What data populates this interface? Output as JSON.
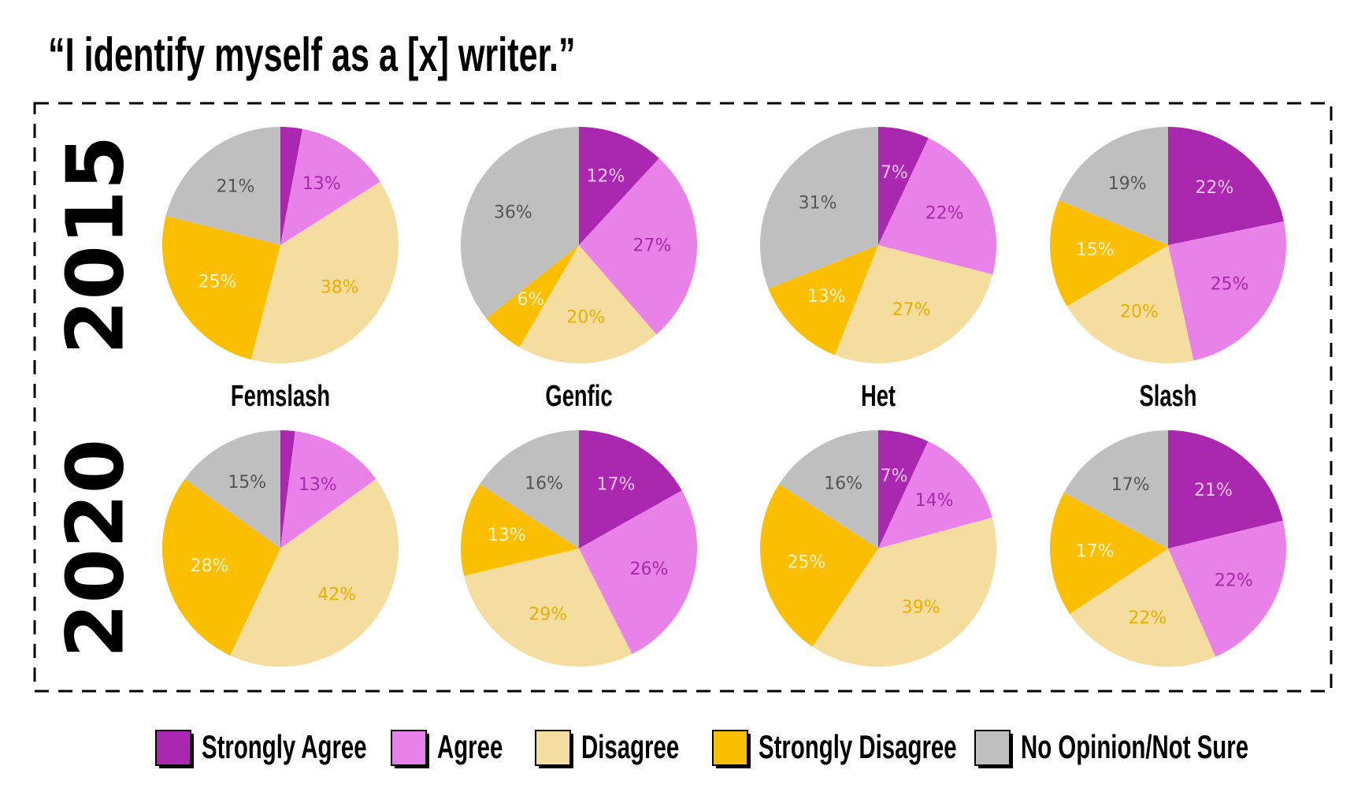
{
  "chart_data": {
    "type": "pie",
    "title": "“I identify myself as a [x] writer.”",
    "categories": [
      "Strongly Agree",
      "Agree",
      "Disagree",
      "Strongly Disagree",
      "No Opinion/Not Sure"
    ],
    "colors": [
      "#aa27b0",
      "#e882e8",
      "#f5dc9f",
      "#fbbf00",
      "#bfbfbf"
    ],
    "columns": [
      "Femslash",
      "Genfic",
      "Het",
      "Slash"
    ],
    "rows": [
      {
        "label": "2015",
        "pies": [
          {
            "values": [
              3,
              13,
              38,
              25,
              21
            ],
            "value_labels": [
              null,
              "13%",
              "38%",
              "25%",
              "21%"
            ]
          },
          {
            "values": [
              12,
              27,
              20,
              6,
              36
            ],
            "value_labels": [
              "12%",
              "27%",
              "20%",
              "6%",
              "36%"
            ]
          },
          {
            "values": [
              7,
              22,
              27,
              13,
              31
            ],
            "value_labels": [
              "7%",
              "22%",
              "27%",
              "13%",
              "31%"
            ]
          },
          {
            "values": [
              22,
              25,
              20,
              15,
              19
            ],
            "value_labels": [
              "22%",
              "25%",
              "20%",
              "15%",
              "19%"
            ]
          }
        ]
      },
      {
        "label": "2020",
        "pies": [
          {
            "values": [
              2,
              13,
              42,
              28,
              15
            ],
            "value_labels": [
              null,
              "13%",
              "42%",
              "28%",
              "15%"
            ]
          },
          {
            "values": [
              17,
              26,
              29,
              13,
              16
            ],
            "value_labels": [
              "17%",
              "26%",
              "29%",
              "13%",
              "16%"
            ]
          },
          {
            "values": [
              7,
              14,
              39,
              25,
              16
            ],
            "value_labels": [
              "7%",
              "14%",
              "39%",
              "25%",
              "16%"
            ]
          },
          {
            "values": [
              21,
              22,
              22,
              17,
              17
            ],
            "value_labels": [
              "21%",
              "22%",
              "22%",
              "17%",
              "17%"
            ]
          }
        ]
      }
    ]
  }
}
